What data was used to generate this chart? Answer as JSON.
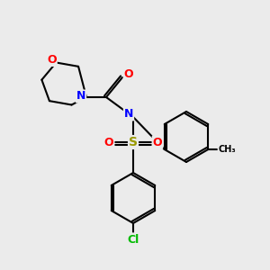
{
  "background_color": "#ebebeb",
  "atom_colors": {
    "O": "#ff0000",
    "N": "#0000ff",
    "S": "#999900",
    "Cl": "#00bb00",
    "C": "#000000"
  },
  "bond_color": "#000000",
  "figsize": [
    3.0,
    3.0
  ],
  "dpi": 100
}
